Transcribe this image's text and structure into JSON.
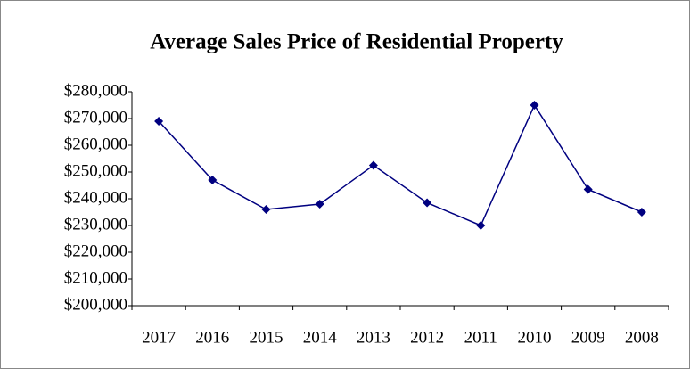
{
  "chart_data": {
    "type": "line",
    "title": "Average Sales Price of Residential Property",
    "categories": [
      "2017",
      "2016",
      "2015",
      "2014",
      "2013",
      "2012",
      "2011",
      "2010",
      "2009",
      "2008"
    ],
    "series": [
      {
        "name": "Average Sales Price",
        "color": "#000080",
        "values": [
          269000,
          247000,
          236000,
          238000,
          252500,
          238500,
          230000,
          275000,
          243500,
          235000
        ]
      }
    ],
    "ylim": [
      200000,
      280000
    ],
    "yticks": [
      {
        "value": 200000,
        "label": "$200,000"
      },
      {
        "value": 210000,
        "label": "$210,000"
      },
      {
        "value": 220000,
        "label": "$220,000"
      },
      {
        "value": 230000,
        "label": "$230,000"
      },
      {
        "value": 240000,
        "label": "$240,000"
      },
      {
        "value": 250000,
        "label": "$250,000"
      },
      {
        "value": 260000,
        "label": "$260,000"
      },
      {
        "value": 270000,
        "label": "$270,000"
      },
      {
        "value": 280000,
        "label": "$280,000"
      }
    ],
    "grid": false,
    "legend": false
  }
}
